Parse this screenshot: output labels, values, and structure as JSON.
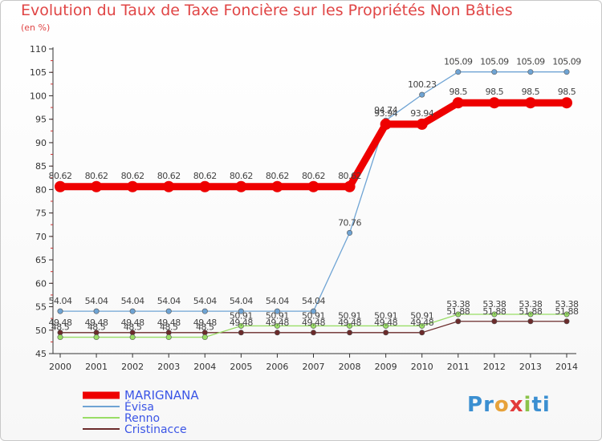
{
  "chart_data": {
    "type": "line",
    "title": "Evolution du Taux de Taxe Foncière sur les Propriétés Non Bâties",
    "unit_label": "(en %)",
    "categories": [
      "2000",
      "2001",
      "2002",
      "2003",
      "2004",
      "2005",
      "2006",
      "2007",
      "2008",
      "2009",
      "2010",
      "2011",
      "2012",
      "2013",
      "2014"
    ],
    "ylim": [
      45,
      110
    ],
    "yticks": [
      45,
      50,
      55,
      60,
      65,
      70,
      75,
      80,
      85,
      90,
      95,
      100,
      105,
      110
    ],
    "grid": false,
    "legend_position": "bottom-left",
    "series": [
      {
        "name": "MARIGNANA",
        "color": "#ee0000",
        "values": [
          80.62,
          80.62,
          80.62,
          80.62,
          80.62,
          80.62,
          80.62,
          80.62,
          80.62,
          93.94,
          93.94,
          98.5,
          98.5,
          98.5,
          98.5
        ],
        "labels": [
          "80.62",
          "80.62",
          "80.62",
          "80.62",
          "80.62",
          "80.62",
          "80.62",
          "80.62",
          "80.62",
          "93.94",
          "93.94",
          "98.5",
          "98.5",
          "98.5",
          "98.5"
        ]
      },
      {
        "name": "Évisa",
        "color": "#6fa4d4",
        "values": [
          54.04,
          54.04,
          54.04,
          54.04,
          54.04,
          54.04,
          54.04,
          54.04,
          70.76,
          94.74,
          100.23,
          105.09,
          105.09,
          105.09,
          105.09
        ],
        "labels": [
          "54.04",
          "54.04",
          "54.04",
          "54.04",
          "54.04",
          "54.04",
          "54.04",
          "54.04",
          "70.76",
          "94.74",
          "100.23",
          "105.09",
          "105.09",
          "105.09",
          "105.09"
        ]
      },
      {
        "name": "Renno",
        "color": "#99dd66",
        "values": [
          48.5,
          48.5,
          48.5,
          48.5,
          48.5,
          50.91,
          50.91,
          50.91,
          50.91,
          50.91,
          50.91,
          53.38,
          53.38,
          53.38,
          53.38
        ],
        "labels": [
          "48.5",
          "48.5",
          "48.5",
          "48.5",
          "48.5",
          "50.91",
          "50.91",
          "50.91",
          "50.91",
          "50.91",
          "50.91",
          "53.38",
          "53.38",
          "53.38",
          "53.38"
        ]
      },
      {
        "name": "Cristinacce",
        "color": "#6b2b2b",
        "values": [
          49.48,
          49.48,
          49.48,
          49.48,
          49.48,
          49.48,
          49.48,
          49.48,
          49.48,
          49.48,
          49.48,
          51.88,
          51.88,
          51.88,
          51.88
        ],
        "labels": [
          "49.48",
          "49.48",
          "49.48",
          "49.48",
          "49.48",
          "49.48",
          "49.48",
          "49.48",
          "49.48",
          "49.48",
          "49.48",
          "51.88",
          "51.88",
          "51.88",
          "51.88"
        ]
      }
    ]
  },
  "logo": {
    "letters": [
      "P",
      "r",
      "o",
      "x",
      "i",
      "ti"
    ]
  }
}
